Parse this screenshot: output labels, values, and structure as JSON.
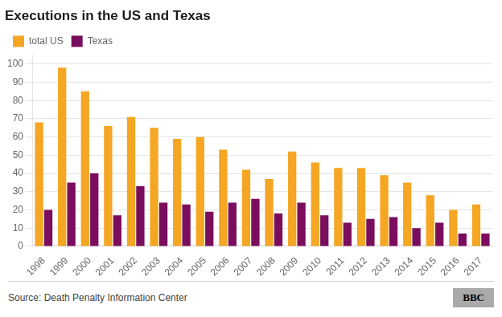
{
  "chart_data": {
    "type": "bar",
    "title": "Executions in the US and Texas",
    "categories": [
      "1998",
      "1999",
      "2000",
      "2001",
      "2002",
      "2003",
      "2004",
      "2005",
      "2006",
      "2007",
      "2008",
      "2009",
      "2010",
      "2011",
      "2012",
      "2013",
      "2014",
      "2015",
      "2016",
      "2017"
    ],
    "series": [
      {
        "name": "total US",
        "color": "#F5A623",
        "values": [
          68,
          98,
          85,
          66,
          71,
          65,
          59,
          60,
          53,
          42,
          37,
          52,
          46,
          43,
          43,
          39,
          35,
          28,
          20,
          23
        ]
      },
      {
        "name": "Texas",
        "color": "#7B0D5E",
        "values": [
          20,
          35,
          40,
          17,
          33,
          24,
          23,
          19,
          24,
          26,
          18,
          24,
          17,
          13,
          15,
          16,
          10,
          13,
          7,
          7
        ]
      }
    ],
    "ylim": [
      0,
      105
    ],
    "yticks": [
      0,
      10,
      20,
      30,
      40,
      50,
      60,
      70,
      80,
      90,
      100
    ],
    "grid": true,
    "legend": "upper left",
    "annotations": [
      "Source: Death Penalty Information Center",
      "BBC"
    ]
  }
}
